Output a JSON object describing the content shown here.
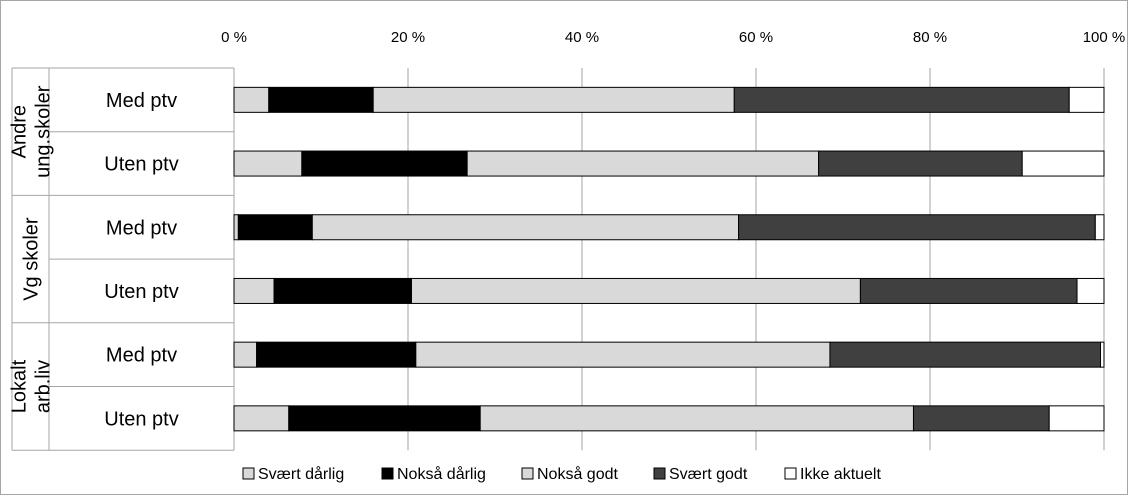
{
  "chart_data": {
    "type": "bar",
    "orientation": "horizontal",
    "stacked": "percent",
    "x_ticks": [
      "0 %",
      "20 %",
      "40 %",
      "60 %",
      "80 %",
      "100 %"
    ],
    "xlim": [
      0,
      100
    ],
    "grid": "vertical",
    "legend_position": "bottom",
    "groups": [
      {
        "label": "Andre ung.skoler",
        "label_lines": [
          "Andre",
          "ung.skoler"
        ],
        "rows": [
          {
            "label": "Med ptv",
            "values": [
              4,
              12,
              41.5,
              38.5,
              4
            ]
          },
          {
            "label": "Uten ptv",
            "values": [
              7.8,
              19,
              40.4,
              23.4,
              9.4
            ]
          }
        ]
      },
      {
        "label": "Vg skoler",
        "label_lines": [
          "Vg skoler"
        ],
        "rows": [
          {
            "label": "Med ptv",
            "values": [
              0.5,
              8.5,
              49,
              41,
              1
            ]
          },
          {
            "label": "Uten ptv",
            "values": [
              4.6,
              15.8,
              51.6,
              24.9,
              3.1
            ]
          }
        ]
      },
      {
        "label": "Lokalt arb.liv",
        "label_lines": [
          "Lokalt",
          "arb.liv"
        ],
        "rows": [
          {
            "label": "Med ptv",
            "values": [
              2.6,
              18.3,
              47.6,
              31.1,
              0.4
            ]
          },
          {
            "label": "Uten ptv",
            "values": [
              6.3,
              22,
              49.8,
              15.6,
              6.3
            ]
          }
        ]
      }
    ],
    "series": [
      {
        "name": "Svært dårlig",
        "color": "#d9d9d9"
      },
      {
        "name": "Nokså dårlig",
        "color": "#000000"
      },
      {
        "name": "Nokså godt",
        "color": "#d9d9d9"
      },
      {
        "name": "Svært godt",
        "color": "#404040"
      },
      {
        "name": "Ikke aktuelt",
        "color": "#ffffff"
      }
    ]
  }
}
